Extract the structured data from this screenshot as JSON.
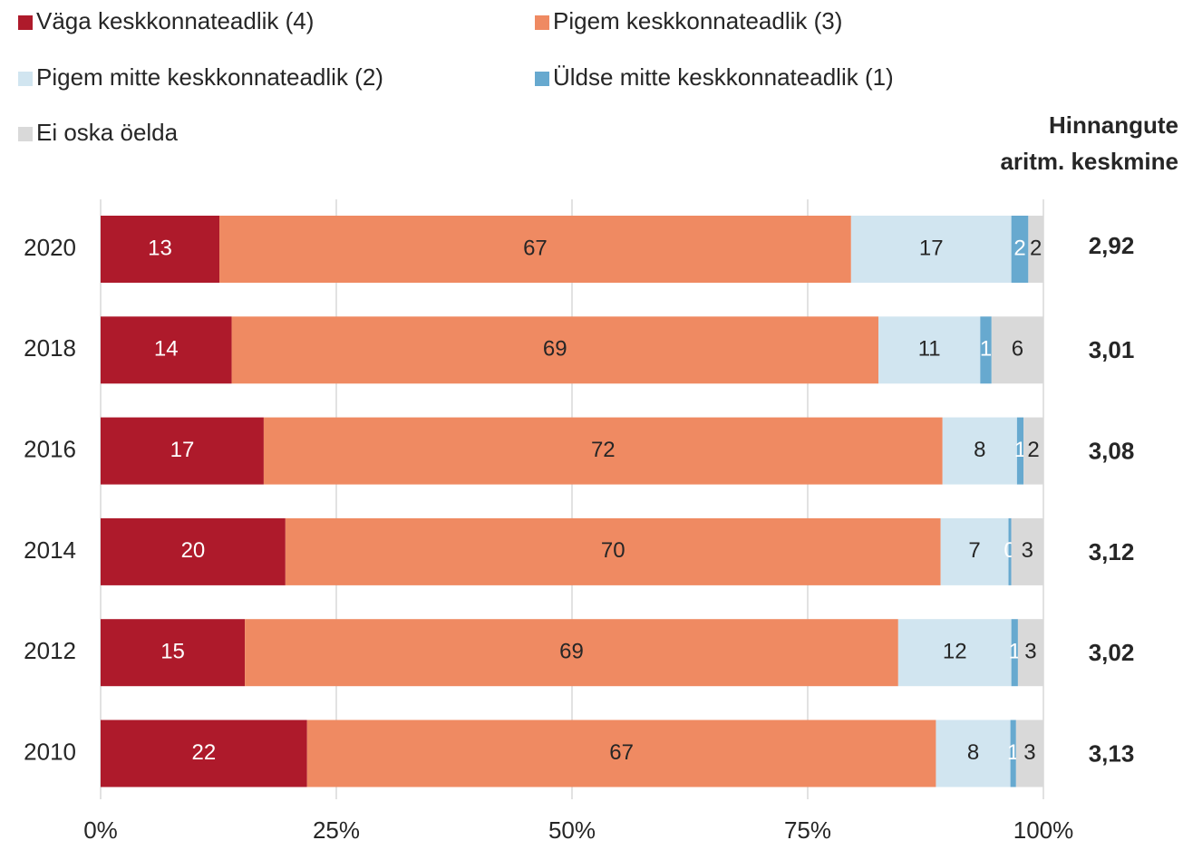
{
  "chart_data": {
    "type": "stacked-barh",
    "categories": [
      "2020",
      "2018",
      "2016",
      "2014",
      "2012",
      "2010"
    ],
    "series": [
      {
        "name": "Väga keskkonnateadlik (4)",
        "color": "#ae1a2b",
        "values": [
          12.6,
          13.9,
          17.3,
          19.6,
          15.3,
          21.9
        ],
        "value_labels": [
          "13",
          "14",
          "17",
          "20",
          "15",
          "22"
        ]
      },
      {
        "name": "Pigem keskkonnateadlik (3)",
        "color": "#ef8a62",
        "values": [
          67.0,
          68.6,
          72.0,
          69.5,
          69.3,
          66.7
        ],
        "value_labels": [
          "67",
          "69",
          "72",
          "70",
          "69",
          "67"
        ]
      },
      {
        "name": "Pigem mitte keskkonnateadlik (2)",
        "color": "#d1e5f0",
        "values": [
          17.0,
          10.8,
          7.9,
          7.2,
          12.0,
          7.9
        ],
        "value_labels": [
          "17",
          "11",
          "8",
          "7",
          "12",
          "8"
        ]
      },
      {
        "name": "Üldse mitte keskkonnateadlik (1)",
        "color": "#67a9cf",
        "values": [
          1.8,
          1.2,
          0.7,
          0.3,
          0.7,
          0.6
        ],
        "value_labels": [
          "2",
          "1",
          "1",
          "0",
          "1",
          "1"
        ]
      },
      {
        "name": "Ei oska öelda",
        "color": "#d9d9d9",
        "values": [
          1.6,
          5.5,
          2.1,
          3.4,
          2.7,
          2.9
        ],
        "value_labels": [
          "2",
          "6",
          "2",
          "3",
          "3",
          "3"
        ]
      }
    ],
    "xlim": [
      0,
      100
    ],
    "xticks": [
      {
        "value": 0,
        "label": "0%"
      },
      {
        "value": 25,
        "label": "25%"
      },
      {
        "value": 50,
        "label": "50%"
      },
      {
        "value": 75,
        "label": "75%"
      },
      {
        "value": 100,
        "label": "100%"
      }
    ],
    "grid": true,
    "mean_title": [
      "Hinnangute",
      "aritm. keskmine"
    ],
    "means": [
      "2,92",
      "3,01",
      "3,08",
      "3,12",
      "3,02",
      "3,13"
    ]
  }
}
